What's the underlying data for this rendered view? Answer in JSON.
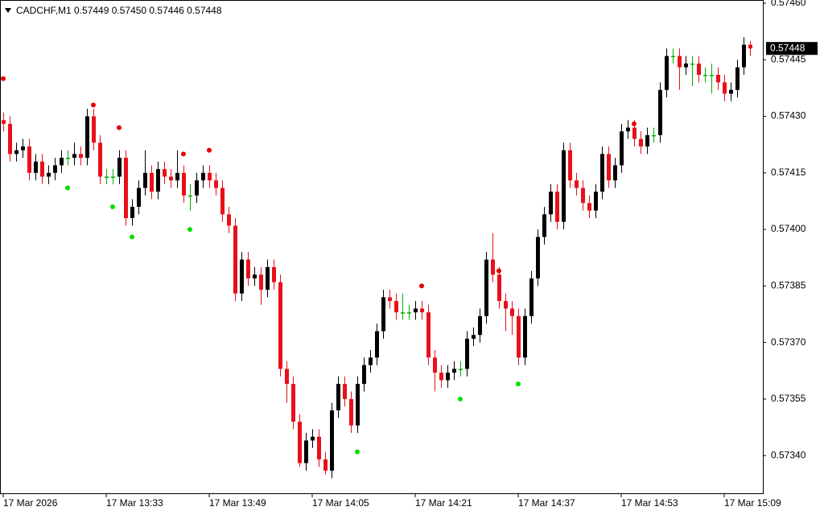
{
  "chart_data": {
    "type": "candlestick",
    "title": "CADCHF,M1  0.57449 0.57450 0.57446 0.57448",
    "categories": [
      "17 Mar 2026",
      null,
      null,
      null,
      null,
      null,
      null,
      null,
      null,
      null,
      null,
      null,
      null,
      null,
      null,
      null,
      "17 Mar 13:33",
      null,
      null,
      null,
      null,
      null,
      null,
      null,
      null,
      null,
      null,
      null,
      null,
      null,
      null,
      null,
      "17 Mar 13:49",
      null,
      null,
      null,
      null,
      null,
      null,
      null,
      null,
      null,
      null,
      null,
      null,
      null,
      null,
      null,
      "17 Mar 14:05",
      null,
      null,
      null,
      null,
      null,
      null,
      null,
      null,
      null,
      null,
      null,
      null,
      null,
      null,
      null,
      "17 Mar 14:21",
      null,
      null,
      null,
      null,
      null,
      null,
      null,
      null,
      null,
      null,
      null,
      null,
      null,
      null,
      null,
      "17 Mar 14:37",
      null,
      null,
      null,
      null,
      null,
      null,
      null,
      null,
      null,
      null,
      null,
      null,
      null,
      null,
      null,
      "17 Mar 14:53",
      null,
      null,
      null,
      null,
      null,
      null,
      null,
      null,
      null,
      null,
      null,
      null,
      null,
      null,
      null,
      "17 Mar 15:09",
      null,
      null,
      null,
      null
    ],
    "open": [
      0.57429,
      0.57428,
      0.5742,
      0.57421,
      0.57422,
      0.57415,
      0.57418,
      0.57414,
      0.57415,
      0.57417,
      0.57419,
      0.57419,
      0.5742,
      0.57419,
      0.5743,
      0.57423,
      0.57414,
      0.57414,
      0.57414,
      0.57419,
      0.57403,
      0.57406,
      0.57411,
      0.57415,
      0.5741,
      0.57416,
      0.57414,
      0.57413,
      0.57415,
      0.57409,
      0.57409,
      0.57413,
      0.57415,
      0.57413,
      0.57411,
      0.57404,
      0.57401,
      0.57383,
      0.57392,
      0.57387,
      0.57388,
      0.57384,
      0.5739,
      0.57386,
      0.57363,
      0.57359,
      0.57349,
      0.57338,
      0.57344,
      0.57345,
      0.57339,
      0.57336,
      0.57352,
      0.57359,
      0.57355,
      0.57348,
      0.57359,
      0.57364,
      0.57366,
      0.57373,
      0.57382,
      0.57381,
      0.57378,
      0.57378,
      0.57378,
      0.57379,
      0.57378,
      0.57366,
      0.57362,
      0.5736,
      0.57362,
      0.57363,
      0.57363,
      0.57371,
      0.57372,
      0.57377,
      0.57392,
      0.57388,
      0.57381,
      0.57379,
      0.57377,
      0.57366,
      0.57377,
      0.57387,
      0.57398,
      0.57404,
      0.5741,
      0.57402,
      0.57421,
      0.57413,
      0.57411,
      0.57407,
      0.57405,
      0.5741,
      0.5742,
      0.57413,
      0.57417,
      0.57426,
      0.57427,
      0.57424,
      0.57422,
      0.57425,
      0.57425,
      0.57437,
      0.57446,
      0.57446,
      0.57443,
      0.57444,
      0.57444,
      0.57441,
      0.57441,
      0.57441,
      0.57439,
      0.57436,
      0.57437,
      0.57443,
      0.57449
    ],
    "high": [
      0.57431,
      0.5743,
      0.57423,
      0.57424,
      0.57424,
      0.5742,
      0.5742,
      0.57417,
      0.57419,
      0.57421,
      0.57421,
      0.57423,
      0.57422,
      0.57432,
      0.57432,
      0.57425,
      0.57416,
      0.57416,
      0.57421,
      0.57421,
      0.57408,
      0.57413,
      0.57421,
      0.57417,
      0.57418,
      0.57418,
      0.57416,
      0.57421,
      0.57417,
      0.57412,
      0.57415,
      0.57417,
      0.57417,
      0.57415,
      0.57413,
      0.57406,
      0.57403,
      0.57394,
      0.57394,
      0.5739,
      0.5739,
      0.57392,
      0.57392,
      0.57388,
      0.57365,
      0.57361,
      0.57351,
      0.57346,
      0.57347,
      0.57347,
      0.57341,
      0.57354,
      0.57361,
      0.57361,
      0.57357,
      0.57361,
      0.57366,
      0.57368,
      0.57375,
      0.57384,
      0.57384,
      0.57383,
      0.57383,
      0.5738,
      0.57381,
      0.57381,
      0.5738,
      0.57368,
      0.57364,
      0.57364,
      0.57365,
      0.57365,
      0.57373,
      0.57374,
      0.57379,
      0.57394,
      0.57399,
      0.5739,
      0.57383,
      0.57381,
      0.57379,
      0.57379,
      0.57389,
      0.574,
      0.57406,
      0.57412,
      0.57412,
      0.57423,
      0.57423,
      0.57415,
      0.57413,
      0.57409,
      0.57412,
      0.57422,
      0.57422,
      0.57419,
      0.57428,
      0.57429,
      0.57429,
      0.57426,
      0.57427,
      0.57427,
      0.57439,
      0.57448,
      0.57448,
      0.57448,
      0.57446,
      0.57446,
      0.57446,
      0.57443,
      0.57444,
      0.57443,
      0.57441,
      0.57439,
      0.57445,
      0.57451,
      0.5745
    ],
    "low": [
      0.57426,
      0.57418,
      0.57418,
      0.57419,
      0.57413,
      0.57413,
      0.57412,
      0.57412,
      0.57413,
      0.57415,
      0.57417,
      0.57417,
      0.57417,
      0.57417,
      0.57421,
      0.57412,
      0.57412,
      0.57412,
      0.57412,
      0.57401,
      0.57401,
      0.57404,
      0.57409,
      0.57408,
      0.57408,
      0.57412,
      0.57411,
      0.57411,
      0.57407,
      0.57405,
      0.57407,
      0.57411,
      0.57411,
      0.57409,
      0.57402,
      0.57399,
      0.57381,
      0.57381,
      0.57385,
      0.57385,
      0.5738,
      0.57382,
      0.57384,
      0.57361,
      0.57354,
      0.57347,
      0.57337,
      0.57336,
      0.57342,
      0.57337,
      0.57335,
      0.57334,
      0.5735,
      0.57353,
      0.57346,
      0.57346,
      0.57357,
      0.57362,
      0.57364,
      0.57371,
      0.57379,
      0.57376,
      0.57376,
      0.57376,
      0.57376,
      0.57376,
      0.57364,
      0.57357,
      0.57358,
      0.57358,
      0.5736,
      0.57361,
      0.57361,
      0.57369,
      0.5737,
      0.57375,
      0.57386,
      0.57379,
      0.57373,
      0.57372,
      0.57364,
      0.57364,
      0.57375,
      0.57385,
      0.57396,
      0.57402,
      0.574,
      0.574,
      0.57411,
      0.57409,
      0.57405,
      0.57403,
      0.57403,
      0.57408,
      0.57411,
      0.57411,
      0.57415,
      0.57424,
      0.57422,
      0.5742,
      0.5742,
      0.57423,
      0.57423,
      0.57435,
      0.57444,
      0.57437,
      0.57441,
      0.57438,
      0.57439,
      0.57439,
      0.57436,
      0.57437,
      0.57434,
      0.57434,
      0.57435,
      0.57441,
      0.57446
    ],
    "close": [
      0.57428,
      0.5742,
      0.57421,
      0.57422,
      0.57415,
      0.57418,
      0.57414,
      0.57415,
      0.57417,
      0.57419,
      0.57419,
      0.5742,
      0.57419,
      0.5743,
      0.57423,
      0.57414,
      0.57414,
      0.57414,
      0.57419,
      0.57403,
      0.57406,
      0.57411,
      0.57415,
      0.5741,
      0.57416,
      0.57414,
      0.57413,
      0.57415,
      0.57409,
      0.57409,
      0.57413,
      0.57415,
      0.57413,
      0.57411,
      0.57404,
      0.57401,
      0.57383,
      0.57392,
      0.57387,
      0.57388,
      0.57384,
      0.5739,
      0.57386,
      0.57363,
      0.57359,
      0.57349,
      0.57338,
      0.57344,
      0.57345,
      0.57339,
      0.57336,
      0.57352,
      0.57359,
      0.57355,
      0.57348,
      0.57359,
      0.57364,
      0.57366,
      0.57373,
      0.57382,
      0.57381,
      0.57378,
      0.57378,
      0.57378,
      0.57379,
      0.57378,
      0.57366,
      0.57362,
      0.5736,
      0.57362,
      0.57363,
      0.57363,
      0.57371,
      0.57372,
      0.57377,
      0.57392,
      0.57388,
      0.57381,
      0.57379,
      0.57377,
      0.57366,
      0.57377,
      0.57387,
      0.57398,
      0.57404,
      0.5741,
      0.57402,
      0.57421,
      0.57413,
      0.57411,
      0.57407,
      0.57405,
      0.5741,
      0.5742,
      0.57413,
      0.57417,
      0.57426,
      0.57427,
      0.57424,
      0.57422,
      0.57425,
      0.57425,
      0.57437,
      0.57446,
      0.57446,
      0.57443,
      0.57444,
      0.57444,
      0.57441,
      0.57441,
      0.57441,
      0.57439,
      0.57436,
      0.57437,
      0.57443,
      0.57449,
      0.57448
    ],
    "up_color": "#000000",
    "down_color": "#e8101a",
    "doji_color": "#00b000",
    "series": [
      {
        "color": "#e80000",
        "values": [
          0.5744,
          null,
          null,
          null,
          null,
          null,
          null,
          null,
          null,
          null,
          null,
          null,
          null,
          null,
          0.57433,
          null,
          null,
          null,
          0.57427,
          null,
          null,
          null,
          null,
          null,
          null,
          null,
          null,
          null,
          0.5742,
          null,
          null,
          null,
          0.57421,
          null,
          null,
          null,
          null,
          null,
          null,
          null,
          null,
          null,
          null,
          null,
          null,
          null,
          null,
          null,
          null,
          null,
          null,
          null,
          null,
          null,
          null,
          null,
          null,
          null,
          null,
          null,
          null,
          null,
          null,
          null,
          null,
          0.57385,
          null,
          null,
          null,
          null,
          null,
          null,
          null,
          null,
          null,
          null,
          null,
          0.57389,
          null,
          null,
          null,
          null,
          null,
          null,
          null,
          null,
          null,
          null,
          null,
          null,
          null,
          null,
          null,
          null,
          null,
          null,
          null,
          null,
          0.57428,
          null,
          null,
          null,
          null,
          null,
          null,
          null,
          null,
          null,
          null,
          null,
          null,
          null,
          null,
          null,
          null,
          null,
          null
        ]
      },
      {
        "color": "#00e000",
        "values": [
          null,
          null,
          null,
          null,
          null,
          null,
          null,
          null,
          null,
          null,
          0.57411,
          null,
          null,
          null,
          null,
          null,
          null,
          0.57406,
          null,
          null,
          0.57398,
          null,
          null,
          null,
          null,
          null,
          null,
          null,
          null,
          0.574,
          null,
          null,
          null,
          null,
          null,
          null,
          null,
          null,
          null,
          null,
          null,
          null,
          null,
          null,
          null,
          null,
          null,
          null,
          null,
          null,
          null,
          null,
          null,
          null,
          null,
          0.57341,
          null,
          null,
          null,
          null,
          null,
          null,
          null,
          null,
          null,
          null,
          null,
          null,
          null,
          null,
          null,
          0.57355,
          null,
          null,
          null,
          null,
          null,
          null,
          null,
          null,
          0.57359,
          null,
          null,
          null,
          null,
          null,
          null,
          null,
          null,
          null,
          null,
          null,
          null,
          null,
          null,
          null,
          null,
          null,
          null,
          null,
          null,
          null,
          null,
          null,
          null,
          null,
          null,
          null,
          null,
          null,
          null,
          null,
          null,
          null,
          null,
          null,
          null
        ]
      }
    ],
    "ylim": [
      0.5733,
      0.5746
    ],
    "yticks": [
      {
        "value": 0.5746,
        "label": "0.57460"
      },
      0.57445,
      {
        "value": 0.5743,
        "label": "0.57430"
      },
      0.57415,
      {
        "value": 0.574,
        "label": "0.57400"
      },
      0.57385,
      {
        "value": 0.5737,
        "label": "0.57370"
      },
      0.57355,
      {
        "value": 0.5734,
        "label": "0.57340"
      }
    ]
  }
}
